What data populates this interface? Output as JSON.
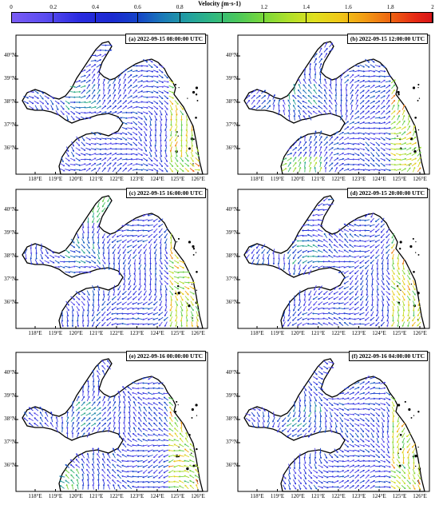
{
  "colorbar": {
    "title": "Velocity (m·s-1)",
    "ticks": [
      "0",
      "0.2",
      "0.4",
      "0.6",
      "0.8",
      "1",
      "1.2",
      "1.4",
      "1.6",
      "1.8",
      "2"
    ],
    "range": [
      0,
      2
    ]
  },
  "axes": {
    "lat_labels": [
      "40°N",
      "39°N",
      "38°N",
      "37°N",
      "36°N"
    ],
    "lon_labels": [
      "118°E",
      "119°E",
      "120°E",
      "121°E",
      "122°E",
      "123°E",
      "124°E",
      "125°E",
      "126°E"
    ]
  },
  "panels": [
    {
      "title": "(a) 2022-09-15 08:00:00 UTC"
    },
    {
      "title": "(b) 2022-09-15 12:00:00 UTC"
    },
    {
      "title": "(c) 2022-09-15 16:00:00 UTC"
    },
    {
      "title": "(d) 2022-09-15 20:00:00 UTC"
    },
    {
      "title": "(e) 2022-09-16 00:00:00 UTC"
    },
    {
      "title": "(f) 2022-09-16 04:00:00 UTC"
    }
  ]
}
